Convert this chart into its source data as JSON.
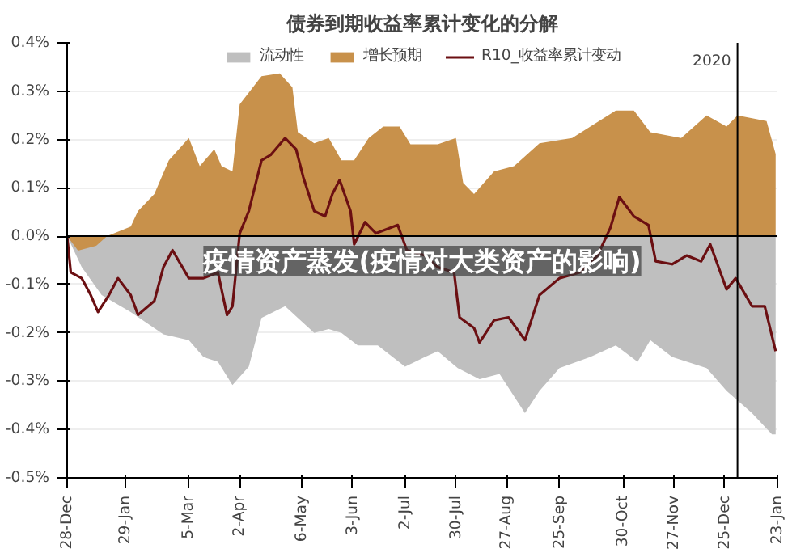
{
  "chart_data": {
    "type": "area",
    "title": "债券到期收益率累计变化的分解",
    "xlim": [
      "2018-12-28",
      "2020-01-23"
    ],
    "ylim": [
      -0.5,
      0.4
    ],
    "xticks": [
      {
        "value": "2018-12-28",
        "label": "28-Dec"
      },
      {
        "value": "2019-01-29",
        "label": "29-Jan"
      },
      {
        "value": "2019-03-05",
        "label": "5-Mar"
      },
      {
        "value": "2019-04-02",
        "label": "2-Apr"
      },
      {
        "value": "2019-05-06",
        "label": "6-May"
      },
      {
        "value": "2019-06-03",
        "label": "3-Jun"
      },
      {
        "value": "2019-07-02",
        "label": "2-Jul"
      },
      {
        "value": "2019-07-30",
        "label": "30-Jul"
      },
      {
        "value": "2019-08-27",
        "label": "27-Aug"
      },
      {
        "value": "2019-09-25",
        "label": "25-Sep"
      },
      {
        "value": "2019-10-30",
        "label": "30-Oct"
      },
      {
        "value": "2019-11-27",
        "label": "27-Nov"
      },
      {
        "value": "2019-12-25",
        "label": "25-Dec"
      },
      {
        "value": "2020-01-23",
        "label": "23-Jan"
      }
    ],
    "yticks": [
      {
        "value": 0.4,
        "label": "0.4%"
      },
      {
        "value": 0.3,
        "label": "0.3%"
      },
      {
        "value": 0.2,
        "label": "0.2%"
      },
      {
        "value": 0.1,
        "label": "0.1%"
      },
      {
        "value": 0.0,
        "label": "0.0%"
      },
      {
        "value": -0.1,
        "label": "-0.1%"
      },
      {
        "value": -0.2,
        "label": "-0.2%"
      },
      {
        "value": -0.3,
        "label": "-0.3%"
      },
      {
        "value": -0.4,
        "label": "-0.4%"
      },
      {
        "value": -0.5,
        "label": "-0.5%"
      }
    ],
    "grid": "y",
    "legend": "top",
    "series": [
      {
        "name": "流动性",
        "color": "#bfbfbf",
        "x": [
          "2018-12-28",
          "2019-01-05",
          "2019-01-16",
          "2019-02-01",
          "2019-02-19",
          "2019-03-05",
          "2019-03-13",
          "2019-03-21",
          "2019-03-29",
          "2019-04-07",
          "2019-04-14",
          "2019-04-27",
          "2019-05-04",
          "2019-05-13",
          "2019-05-21",
          "2019-05-28",
          "2019-06-06",
          "2019-06-17",
          "2019-07-02",
          "2019-07-13",
          "2019-07-20",
          "2019-07-31",
          "2019-08-12",
          "2019-08-23",
          "2019-09-06",
          "2019-09-14",
          "2019-09-25",
          "2019-10-12",
          "2019-10-26",
          "2019-11-07",
          "2019-11-14",
          "2019-11-26",
          "2019-12-15",
          "2019-12-26",
          "2020-01-09",
          "2020-01-20",
          "2020-01-22"
        ],
        "values": [
          0,
          -0.064,
          -0.122,
          -0.157,
          -0.203,
          -0.215,
          -0.25,
          -0.26,
          -0.308,
          -0.27,
          -0.169,
          -0.145,
          -0.169,
          -0.2,
          -0.192,
          -0.2,
          -0.226,
          -0.226,
          -0.27,
          -0.25,
          -0.238,
          -0.273,
          -0.296,
          -0.285,
          -0.366,
          -0.32,
          -0.273,
          -0.25,
          -0.226,
          -0.26,
          -0.215,
          -0.25,
          -0.273,
          -0.32,
          -0.366,
          -0.41,
          -0.41
        ]
      },
      {
        "name": "增长预期",
        "color": "#c8914b",
        "x": [
          "2018-12-28",
          "2019-01-03",
          "2019-01-13",
          "2019-01-19",
          "2019-02-01",
          "2019-02-05",
          "2019-02-14",
          "2019-02-22",
          "2019-03-05",
          "2019-03-11",
          "2019-03-19",
          "2019-03-23",
          "2019-03-29",
          "2019-04-02",
          "2019-04-14",
          "2019-04-24",
          "2019-05-01",
          "2019-05-04",
          "2019-05-13",
          "2019-05-21",
          "2019-05-28",
          "2019-06-04",
          "2019-06-12",
          "2019-06-20",
          "2019-06-29",
          "2019-07-05",
          "2019-07-20",
          "2019-07-30",
          "2019-08-03",
          "2019-08-09",
          "2019-08-20",
          "2019-08-31",
          "2019-09-14",
          "2019-10-02",
          "2019-10-12",
          "2019-10-26",
          "2019-11-05",
          "2019-11-14",
          "2019-12-01",
          "2019-12-15",
          "2019-12-26",
          "2020-01-01",
          "2020-01-17",
          "2020-01-22"
        ],
        "values": [
          0,
          -0.03,
          -0.02,
          0.0,
          0.02,
          0.052,
          0.087,
          0.157,
          0.203,
          0.145,
          0.18,
          0.145,
          0.134,
          0.273,
          0.331,
          0.337,
          0.308,
          0.215,
          0.192,
          0.203,
          0.157,
          0.157,
          0.203,
          0.227,
          0.227,
          0.19,
          0.19,
          0.203,
          0.11,
          0.087,
          0.134,
          0.145,
          0.192,
          0.203,
          0.227,
          0.26,
          0.26,
          0.215,
          0.203,
          0.25,
          0.227,
          0.25,
          0.238,
          0.17
        ]
      },
      {
        "name": "R10_收益率累计变动",
        "type": "line",
        "color": "#6b0f12",
        "x": [
          "2018-12-28",
          "2018-12-30",
          "2019-01-05",
          "2019-01-10",
          "2019-01-14",
          "2019-01-20",
          "2019-01-25",
          "2019-02-01",
          "2019-02-05",
          "2019-02-14",
          "2019-02-19",
          "2019-02-24",
          "2019-03-05",
          "2019-03-13",
          "2019-03-21",
          "2019-03-26",
          "2019-03-29",
          "2019-04-02",
          "2019-04-07",
          "2019-04-14",
          "2019-04-19",
          "2019-04-27",
          "2019-05-03",
          "2019-05-07",
          "2019-05-13",
          "2019-05-19",
          "2019-05-23",
          "2019-05-27",
          "2019-06-02",
          "2019-06-04",
          "2019-06-10",
          "2019-06-16",
          "2019-06-28",
          "2019-07-03",
          "2019-07-13",
          "2019-07-20",
          "2019-07-29",
          "2019-08-01",
          "2019-08-09",
          "2019-08-12",
          "2019-08-20",
          "2019-08-28",
          "2019-09-06",
          "2019-09-14",
          "2019-09-25",
          "2019-10-06",
          "2019-10-16",
          "2019-10-23",
          "2019-10-28",
          "2019-11-05",
          "2019-11-13",
          "2019-11-17",
          "2019-11-26",
          "2019-12-04",
          "2019-12-12",
          "2019-12-17",
          "2019-12-26",
          "2019-12-31",
          "2020-01-09",
          "2020-01-16",
          "2020-01-22"
        ],
        "values": [
          0,
          -0.075,
          -0.087,
          -0.122,
          -0.157,
          -0.122,
          -0.087,
          -0.122,
          -0.163,
          -0.134,
          -0.064,
          -0.029,
          -0.087,
          -0.087,
          -0.075,
          -0.163,
          -0.145,
          0.006,
          0.052,
          0.157,
          0.168,
          0.203,
          0.18,
          0.122,
          0.052,
          0.041,
          0.087,
          0.116,
          0.052,
          -0.017,
          0.029,
          0.006,
          0.023,
          -0.029,
          -0.04,
          -0.064,
          -0.075,
          -0.168,
          -0.19,
          -0.22,
          -0.174,
          -0.168,
          -0.215,
          -0.122,
          -0.087,
          -0.075,
          -0.04,
          0.017,
          0.081,
          0.041,
          0.023,
          -0.052,
          -0.058,
          -0.04,
          -0.052,
          -0.017,
          -0.11,
          -0.087,
          -0.145,
          -0.145,
          -0.238
        ]
      }
    ],
    "ref_lines": [
      {
        "axis": "x",
        "value": "2020",
        "label": "2020",
        "color": "#000000"
      }
    ],
    "annotations": [
      "疫情资产蒸发(疫情对大类资产的影响)"
    ]
  }
}
